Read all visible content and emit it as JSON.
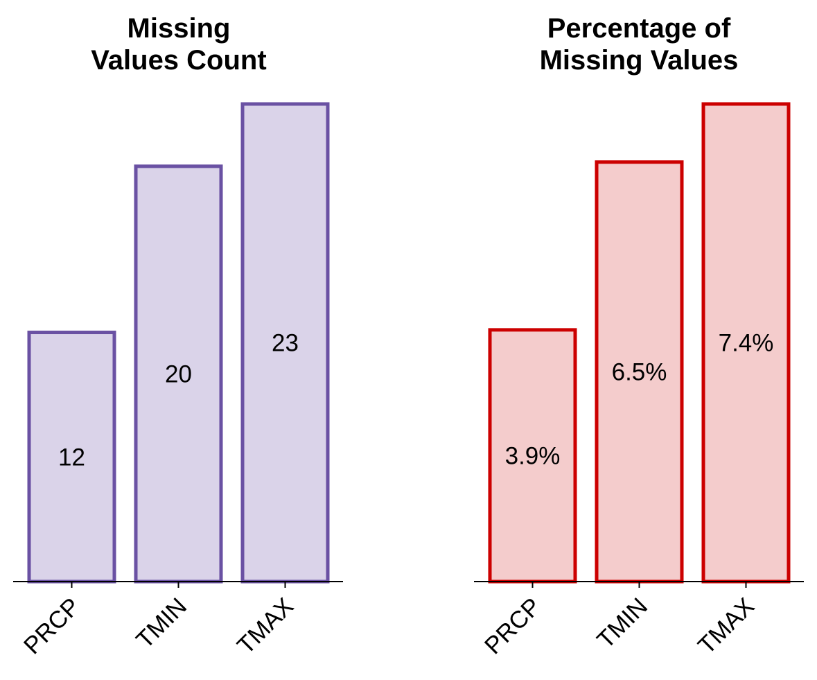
{
  "chart_data": [
    {
      "type": "bar",
      "title_lines": [
        "Missing",
        "Values Count"
      ],
      "categories": [
        "PRCP",
        "TMIN",
        "TMAX"
      ],
      "values": [
        12,
        20,
        23
      ],
      "data_labels": [
        "12",
        "20",
        "23"
      ],
      "ylim": [
        0,
        23
      ],
      "grid": false,
      "colors": {
        "fill": "#dad3e9",
        "edge": "#6a51a3"
      }
    },
    {
      "type": "bar",
      "title_lines": [
        "Percentage of",
        "Missing Values"
      ],
      "categories": [
        "PRCP",
        "TMIN",
        "TMAX"
      ],
      "values": [
        3.9,
        6.5,
        7.4
      ],
      "data_labels": [
        "3.9%",
        "6.5%",
        "7.4%"
      ],
      "ylim": [
        0,
        7.4
      ],
      "grid": false,
      "colors": {
        "fill": "#f4cccc",
        "edge": "#cc0000"
      }
    }
  ]
}
